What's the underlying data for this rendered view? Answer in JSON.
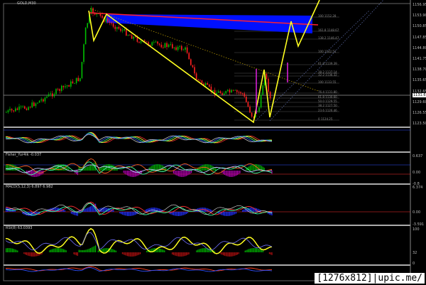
{
  "symbol_title": "GOLD,M30",
  "price_axis": [
    "1156.95",
    "1153.90",
    "1150.85",
    "1147.85",
    "1144.80",
    "1141.75",
    "1138.70",
    "1135.65",
    "1132.65",
    "1129.60",
    "1126.55",
    "1123.50"
  ],
  "current_price": "1131.61",
  "fib_levels": [
    "100 1152.28",
    "161.8 1148.67",
    "138.2 1146.47",
    "100 1142.51",
    "61.8 1139.39",
    "38.2 1137.14",
    "32.2 1136.32",
    "100 1133.55",
    "76.4 1131.80",
    "61.8 1130.60",
    "50.0 1129.55",
    "38.2 1127.50",
    "23.6 1126.46",
    "0 1124.25"
  ],
  "indicators": {
    "fisher": {
      "label": "Fisher_Yur4ik -0.037",
      "axis": [
        "0.637",
        "0.00",
        "-0.8"
      ]
    },
    "macd": {
      "label": "MACD(5,12,3) 6.897 6.982",
      "axis": [
        "6.374",
        "0.00",
        "-3.591"
      ]
    },
    "rsi": {
      "label": "RSI(8) 63.0393",
      "axis": [
        "100",
        "32",
        "0"
      ]
    }
  },
  "watermark": "[1276x812]|upic.me/",
  "colors": {
    "bull": "#00c000",
    "bear": "#ff2020",
    "zigzag": "#ffff20",
    "zone": "#0010ff",
    "trend": "#ff2030",
    "magenta": "#e020e0"
  }
}
